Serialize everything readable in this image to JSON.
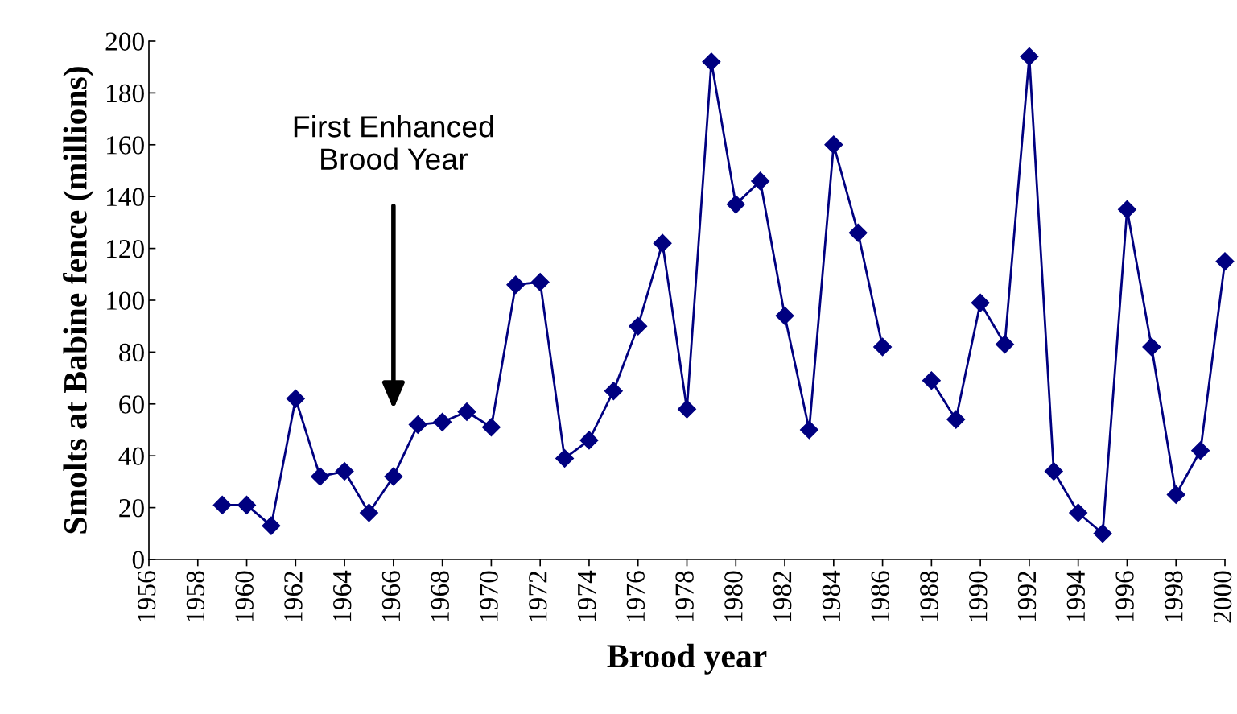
{
  "chart_data": {
    "type": "line",
    "xlabel": "Brood year",
    "ylabel": "Smolts at Babine fence (millions)",
    "x": [
      1959,
      1960,
      1961,
      1962,
      1963,
      1964,
      1965,
      1966,
      1967,
      1968,
      1969,
      1970,
      1971,
      1972,
      1973,
      1974,
      1975,
      1976,
      1977,
      1978,
      1979,
      1980,
      1981,
      1982,
      1983,
      1984,
      1985,
      1986,
      1987,
      1988,
      1989,
      1990,
      1991,
      1992,
      1993,
      1994,
      1995,
      1996,
      1997,
      1998,
      1999,
      2000
    ],
    "series": [
      {
        "color": "#000080",
        "values": [
          21,
          21,
          13,
          62,
          32,
          34,
          18,
          32,
          52,
          53,
          57,
          51,
          106,
          107,
          39,
          46,
          65,
          90,
          122,
          58,
          192,
          137,
          146,
          94,
          50,
          160,
          126,
          82,
          null,
          69,
          54,
          99,
          83,
          194,
          34,
          18,
          10,
          135,
          82,
          25,
          42,
          115
        ]
      }
    ],
    "xlim": [
      1956,
      2000
    ],
    "xticks": [
      1956,
      1958,
      1960,
      1962,
      1964,
      1966,
      1968,
      1970,
      1972,
      1974,
      1976,
      1978,
      1980,
      1982,
      1984,
      1986,
      1988,
      1990,
      1992,
      1994,
      1996,
      1998,
      2000
    ],
    "ylim": [
      0,
      200
    ],
    "yticks": [
      0,
      20,
      40,
      60,
      80,
      100,
      120,
      140,
      160,
      180,
      200
    ],
    "marker": "diamond",
    "line_style": "solid",
    "grid": false,
    "legend": false,
    "annotations": [
      "First Enhanced\nBrood Year"
    ]
  }
}
